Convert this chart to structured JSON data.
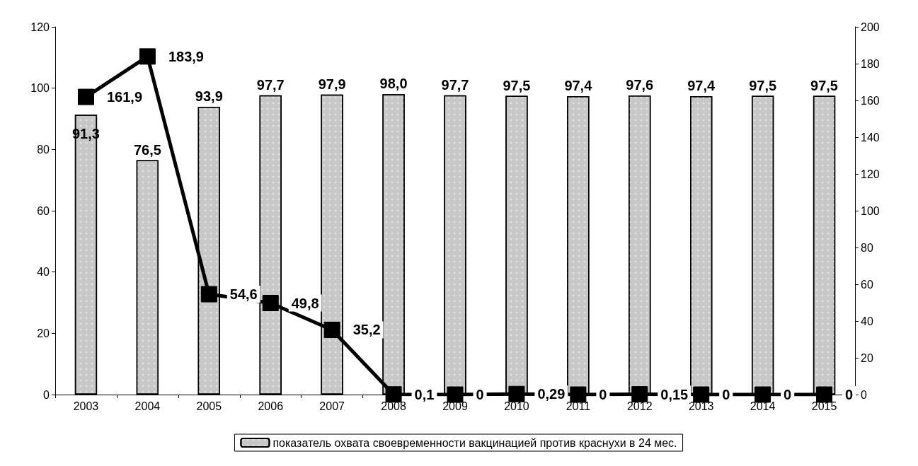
{
  "chart_data": {
    "type": "bar",
    "categories": [
      "2003",
      "2004",
      "2005",
      "2006",
      "2007",
      "2008",
      "2009",
      "2010",
      "2011",
      "2012",
      "2013",
      "2014",
      "2015"
    ],
    "series": [
      {
        "name": "показатель охвата своевременности вакцинацией против краснухи в 24 мес.",
        "color": "#c8c8c8",
        "values": [
          91.3,
          76.5,
          93.9,
          97.7,
          97.9,
          98.0,
          97.7,
          97.5,
          97.4,
          97.6,
          97.4,
          97.5,
          97.5
        ],
        "value_labels": [
          "91,3",
          "76,5",
          "93,9",
          "97,7",
          "97,9",
          "98,0",
          "97,7",
          "97,5",
          "97,4",
          "97,6",
          "97,4",
          "97,5",
          "97,5"
        ]
      },
      {
        "type": "line",
        "axis": "y2",
        "color": "#000000",
        "marker": "square",
        "values": [
          161.9,
          183.9,
          54.6,
          49.8,
          35.2,
          0.1,
          0,
          0.29,
          0,
          0.15,
          0,
          0,
          0
        ],
        "value_labels": [
          "161,9",
          "183,9",
          "54,6",
          "49,8",
          "35,2",
          "0,1",
          "0",
          "0,29",
          "0",
          "0,15",
          "0",
          "0",
          "0"
        ]
      }
    ],
    "ylim": [
      0,
      120
    ],
    "yticks": [
      0,
      20,
      40,
      60,
      80,
      100,
      120
    ],
    "y2lim": [
      0,
      200
    ],
    "y2ticks": [
      0,
      20,
      40,
      60,
      80,
      100,
      120,
      140,
      160,
      180,
      200
    ],
    "grid": false,
    "legend": "bottom"
  }
}
